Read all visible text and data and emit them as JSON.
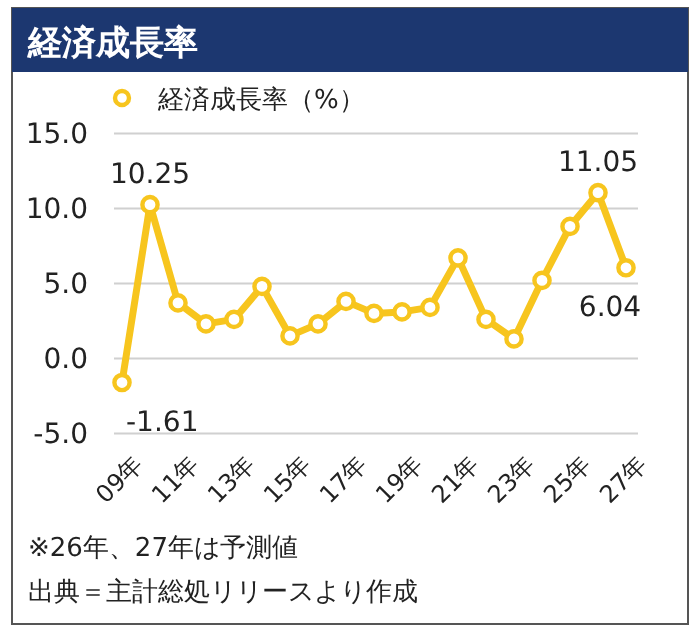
{
  "chart_data": {
    "type": "line",
    "title": "経済成長率",
    "categories": [
      "09年",
      null,
      "11年",
      null,
      "13年",
      null,
      "15年",
      null,
      "17年",
      null,
      "19年",
      null,
      "21年",
      null,
      "23年",
      null,
      "25年",
      null,
      "27年"
    ],
    "series": [
      {
        "name": "経済成長率（%）",
        "color": "#f7c51e",
        "values": [
          -1.61,
          10.25,
          3.7,
          2.3,
          2.6,
          4.8,
          1.5,
          2.3,
          3.8,
          3.0,
          3.1,
          3.4,
          6.7,
          2.6,
          1.3,
          5.2,
          8.8,
          11.05,
          6.04
        ],
        "value_labels": [
          "-1.61",
          "10.25",
          null,
          null,
          null,
          null,
          null,
          null,
          null,
          null,
          null,
          null,
          null,
          null,
          null,
          null,
          null,
          "11.05",
          "6.04"
        ]
      }
    ],
    "ylim": [
      -5,
      15
    ],
    "yticks": [
      {
        "value": -5,
        "label": "-5.0"
      },
      {
        "value": 0,
        "label": "0.0"
      },
      {
        "value": 5,
        "label": "5.0"
      },
      {
        "value": 10,
        "label": "10.0"
      },
      {
        "value": 15,
        "label": "15.0"
      }
    ],
    "grid": "y",
    "legend": "top left",
    "marker": "circle",
    "line_style": "solid",
    "annotations": [
      "※26年、27年は予測値",
      "出典＝主計総処リリースより作成"
    ]
  }
}
